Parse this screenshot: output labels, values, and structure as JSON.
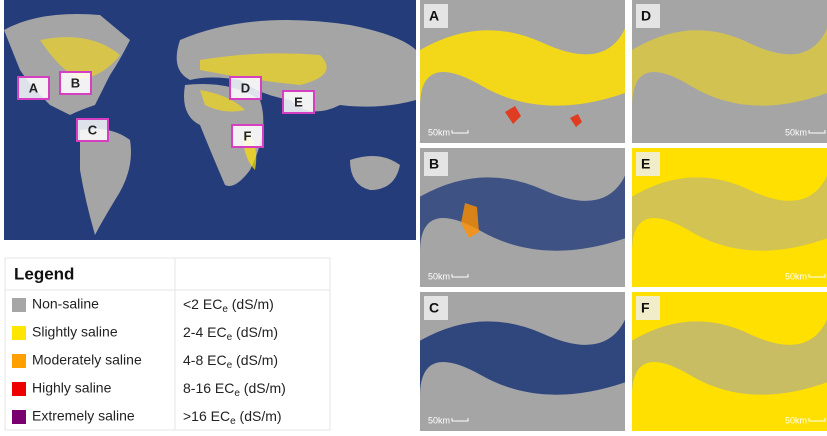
{
  "world_map": {
    "markers": [
      "A",
      "B",
      "C",
      "D",
      "E",
      "F"
    ]
  },
  "legend": {
    "title": "Legend",
    "rows": [
      {
        "label": "Non-saline",
        "color": "#a6a6a6",
        "range": {
          "prefix": "<2 EC",
          "sub": "e",
          "suffix": " (dS/m)"
        }
      },
      {
        "label": "Slightly saline",
        "color": "#ffe600",
        "range": {
          "prefix": "2-4 EC",
          "sub": "e",
          "suffix": " (dS/m)"
        }
      },
      {
        "label": "Moderately saline",
        "color": "#ffa000",
        "range": {
          "prefix": "4-8 EC",
          "sub": "e",
          "suffix": " (dS/m)"
        }
      },
      {
        "label": "Highly saline",
        "color": "#ee0000",
        "range": {
          "prefix": "8-16 EC",
          "sub": "e",
          "suffix": " (dS/m)"
        }
      },
      {
        "label": "Extremely saline",
        "color": "#7a0070",
        "range": {
          "prefix": ">16 EC",
          "sub": "e",
          "suffix": " (dS/m)"
        }
      }
    ]
  },
  "panels": [
    {
      "label": "A",
      "scale": "50km"
    },
    {
      "label": "B",
      "scale": "50km"
    },
    {
      "label": "C",
      "scale": "50km"
    },
    {
      "label": "D",
      "scale": "50km"
    },
    {
      "label": "E",
      "scale": "50km"
    },
    {
      "label": "F",
      "scale": "50km"
    }
  ]
}
